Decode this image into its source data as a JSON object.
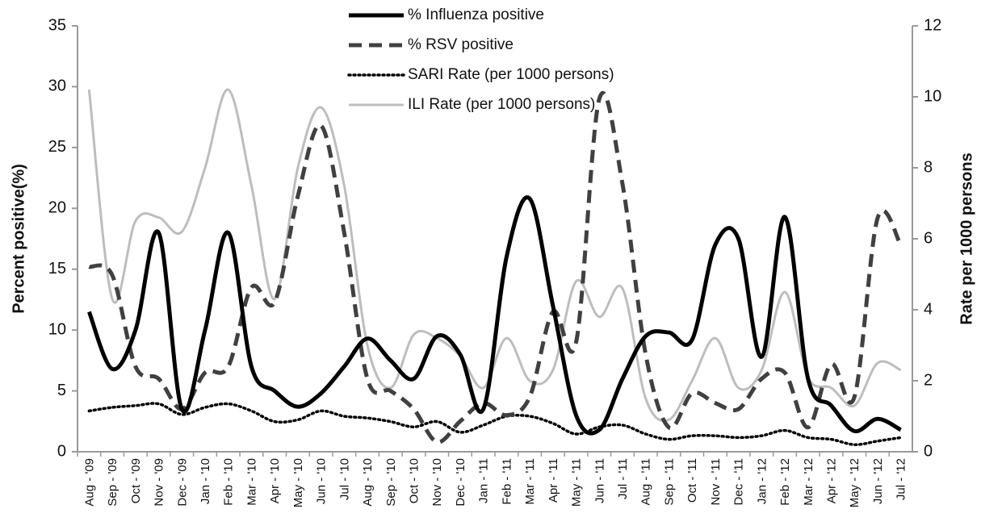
{
  "chart_data": {
    "type": "line",
    "y_label": "Percent positive(%)",
    "y2_label": "Rate per 1000 persons",
    "categories": [
      "Aug - '09",
      "Sep - '09",
      "Oct - '09",
      "Nov - '09",
      "Dec - '09",
      "Jan - '10",
      "Feb - '10",
      "Mar - '10",
      "Apr - '10",
      "May - '10",
      "Jun - '10",
      "Jul - '10",
      "Aug - '10",
      "Sep - '10",
      "Oct - '10",
      "Nov - '10",
      "Dec - '10",
      "Jan - '11",
      "Feb - '11",
      "Mar - '11",
      "Apr - '11",
      "May - '11",
      "Jun - '11",
      "Jul - '11",
      "Aug - '11",
      "Sep - '11",
      "Oct - '11",
      "Nov - '11",
      "Dec - '11",
      "Jan - '12",
      "Feb - '12",
      "Mar - '12",
      "Apr - '12",
      "May - '12",
      "Jun - '12",
      "Jul - '12"
    ],
    "ylim": [
      0,
      35
    ],
    "yticks": [
      0,
      5,
      10,
      15,
      20,
      25,
      30,
      35
    ],
    "y2lim": [
      0,
      12
    ],
    "y2ticks": [
      0,
      2,
      4,
      6,
      8,
      10,
      12
    ],
    "series": [
      {
        "name": "% Influenza positive",
        "color": "#000000",
        "dash": "solid",
        "values": [
          11.5,
          6.8,
          10,
          18,
          3.5,
          10,
          18,
          7,
          5,
          3.7,
          4.8,
          7,
          9.3,
          7.5,
          6,
          9.5,
          8,
          3.5,
          16,
          20.8,
          12,
          3,
          1.8,
          6,
          9.5,
          9.8,
          9.2,
          17,
          17.5,
          7.8,
          19.3,
          6,
          3.8,
          1.7,
          2.7,
          1.8
        ]
      },
      {
        "name": "% RSV positive",
        "color": "#404040",
        "dash": "dashed",
        "values": [
          15.2,
          14.5,
          7,
          6,
          3.5,
          6.5,
          7,
          13.5,
          12.3,
          21,
          26.8,
          18,
          6,
          5,
          3.5,
          0.8,
          2.5,
          4,
          3,
          4.5,
          11.5,
          9,
          29,
          22,
          8,
          2,
          4.8,
          4,
          3.5,
          6,
          6.5,
          2,
          7.2,
          4.5,
          19.2,
          17
        ]
      },
      {
        "name": "SARI Rate (per 1000 persons)",
        "color": "#000000",
        "dash": "dotted",
        "axis": "y2",
        "values": [
          1.15,
          1.25,
          1.3,
          1.35,
          1.05,
          1.25,
          1.35,
          1.15,
          0.85,
          0.9,
          1.15,
          1.0,
          0.95,
          0.85,
          0.7,
          0.85,
          0.55,
          0.75,
          1.0,
          1.0,
          0.8,
          0.5,
          0.7,
          0.75,
          0.5,
          0.35,
          0.45,
          0.45,
          0.4,
          0.45,
          0.6,
          0.4,
          0.35,
          0.2,
          0.3,
          0.4
        ]
      },
      {
        "name": "ILI Rate (per 1000 persons)",
        "color": "#bdbdbd",
        "dash": "solid",
        "axis": "y2",
        "values": [
          10.2,
          4.3,
          6.5,
          6.6,
          6.2,
          8,
          10.2,
          7.5,
          4.3,
          8,
          9.7,
          7.5,
          3,
          1.8,
          3.3,
          3.2,
          2.7,
          1.8,
          3.2,
          2,
          2.3,
          4.8,
          3.8,
          4.6,
          1.5,
          0.9,
          2,
          3.2,
          1.8,
          2.3,
          4.5,
          2.1,
          1.8,
          1.3,
          2.5,
          2.3
        ]
      }
    ]
  }
}
